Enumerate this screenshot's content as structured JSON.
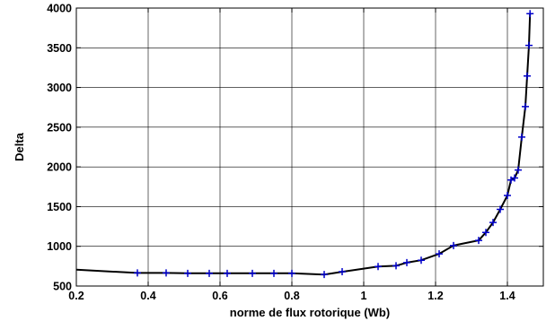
{
  "chart_data": {
    "type": "line",
    "title": "",
    "xlabel": "norme de flux rotorique  (Wb)",
    "ylabel": "Delta",
    "xlim": [
      0.2,
      1.5
    ],
    "ylim": [
      500,
      4000
    ],
    "xticks": [
      0.2,
      0.4,
      0.6,
      0.8,
      1.0,
      1.2,
      1.4
    ],
    "xtick_labels": [
      "0.2",
      "0.4",
      "0.6",
      "0.8",
      "1",
      "1.2",
      "1.4"
    ],
    "yticks": [
      500,
      1000,
      1500,
      2000,
      2500,
      3000,
      3500,
      4000
    ],
    "ytick_labels": [
      "500",
      "1000",
      "1500",
      "2000",
      "2500",
      "3000",
      "3500",
      "4000"
    ],
    "grid": true,
    "line_color": "#000000",
    "marker_color": "#0000cc",
    "line": {
      "x": [
        0.2,
        0.37,
        0.45,
        0.51,
        0.57,
        0.62,
        0.69,
        0.75,
        0.8,
        0.89,
        0.94,
        1.04,
        1.09,
        1.12,
        1.16,
        1.21,
        1.25,
        1.32,
        1.34,
        1.36,
        1.38,
        1.4,
        1.41,
        1.42,
        1.43,
        1.44,
        1.45,
        1.455,
        1.46,
        1.463
      ],
      "y": [
        705,
        665,
        665,
        660,
        660,
        660,
        660,
        660,
        660,
        645,
        680,
        745,
        755,
        795,
        825,
        905,
        1010,
        1075,
        1175,
        1300,
        1465,
        1640,
        1835,
        1860,
        1960,
        2375,
        2760,
        3145,
        3530,
        3930
      ]
    },
    "markers": {
      "x": [
        0.37,
        0.45,
        0.51,
        0.57,
        0.62,
        0.69,
        0.75,
        0.8,
        0.89,
        0.94,
        1.04,
        1.09,
        1.12,
        1.16,
        1.21,
        1.25,
        1.32,
        1.34,
        1.36,
        1.38,
        1.4,
        1.41,
        1.42,
        1.43,
        1.44,
        1.45,
        1.455,
        1.46,
        1.463
      ],
      "y": [
        665,
        665,
        660,
        660,
        660,
        660,
        660,
        660,
        645,
        680,
        745,
        755,
        795,
        825,
        905,
        1010,
        1075,
        1175,
        1300,
        1465,
        1640,
        1835,
        1860,
        1960,
        2375,
        2760,
        3145,
        3530,
        3930
      ]
    }
  }
}
